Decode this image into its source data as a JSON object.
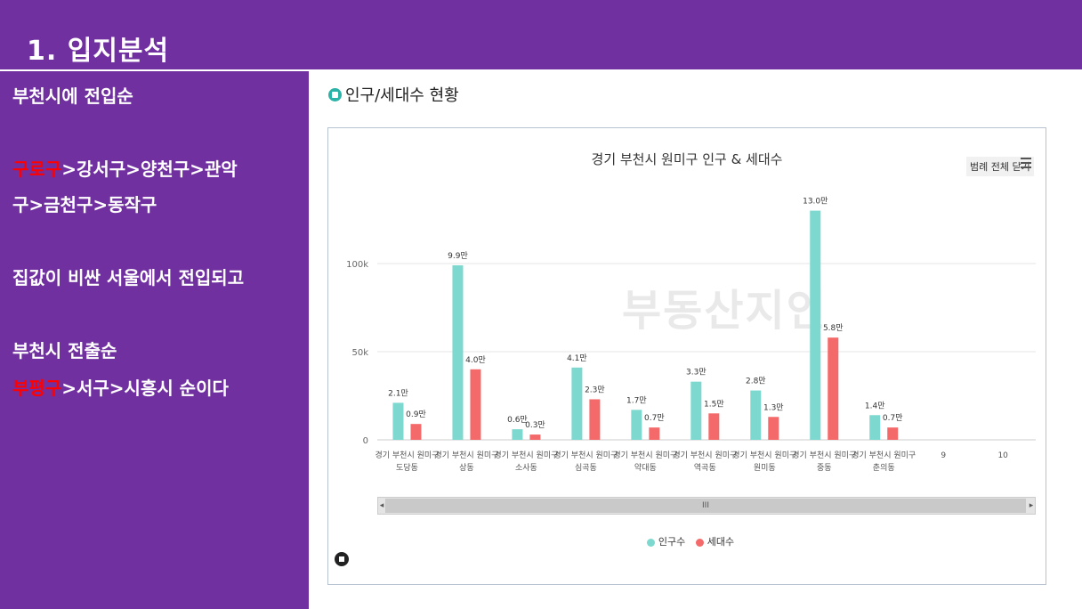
{
  "header": {
    "title": "1. 입지분석"
  },
  "sidebar": {
    "line1": "부천시에 전입순",
    "line2_red": "구로구",
    "line2_rest": ">강서구>양천구>관악",
    "line3": "구>금천구>동작구",
    "line4": "집값이 비싼 서울에서 전입되고",
    "line5": "부천시 전출순",
    "line6_red": "부평구",
    "line6_rest": ">서구>시흥시 순이다"
  },
  "section": {
    "title": "인구/세대수 현황",
    "icon": "home-icon"
  },
  "panel": {
    "legend_toggle": "범례 전체 닫기",
    "menu_icon": "hamburger-menu-icon",
    "scroll_label": "III",
    "watermark": "부동산지인"
  },
  "colors": {
    "purple": "#7030a0",
    "population": "#7dd8cf",
    "households": "#f46a6a",
    "red_text": "#ff0000"
  },
  "chart_data": {
    "type": "bar",
    "title": "경기 부천시 원미구 인구 & 세대수",
    "categories": [
      [
        "경기 부천시 원미구",
        "도당동"
      ],
      [
        "경기 부천시 원미구",
        "상동"
      ],
      [
        "경기 부천시 원미구",
        "소사동"
      ],
      [
        "경기 부천시 원미구",
        "심곡동"
      ],
      [
        "경기 부천시 원미구",
        "약대동"
      ],
      [
        "경기 부천시 원미구",
        "역곡동"
      ],
      [
        "경기 부천시 원미구",
        "원미동"
      ],
      [
        "경기 부천시 원미구",
        "중동"
      ],
      [
        "경기 부천시 원미구",
        "춘의동"
      ],
      [
        "9"
      ],
      [
        "10"
      ]
    ],
    "series": [
      {
        "name": "인구수",
        "values": [
          21000,
          99000,
          6000,
          41000,
          17000,
          33000,
          28000,
          130000,
          14000,
          null,
          null
        ],
        "labels": [
          "2.1만",
          "9.9만",
          "0.6만",
          "4.1만",
          "1.7만",
          "3.3만",
          "2.8만",
          "13.0만",
          "1.4만",
          "",
          ""
        ]
      },
      {
        "name": "세대수",
        "values": [
          9000,
          40000,
          3000,
          23000,
          7000,
          15000,
          13000,
          58000,
          7000,
          null,
          null
        ],
        "labels": [
          "0.9만",
          "4.0만",
          "0.3만",
          "2.3만",
          "0.7만",
          "1.5만",
          "1.3만",
          "5.8만",
          "0.7만",
          "",
          ""
        ]
      }
    ],
    "yticks": [
      {
        "v": 0,
        "label": "0"
      },
      {
        "v": 50000,
        "label": "50k"
      },
      {
        "v": 100000,
        "label": "100k"
      }
    ],
    "ylim": [
      0,
      130000
    ],
    "grid": true,
    "legend": "bottom-center"
  }
}
